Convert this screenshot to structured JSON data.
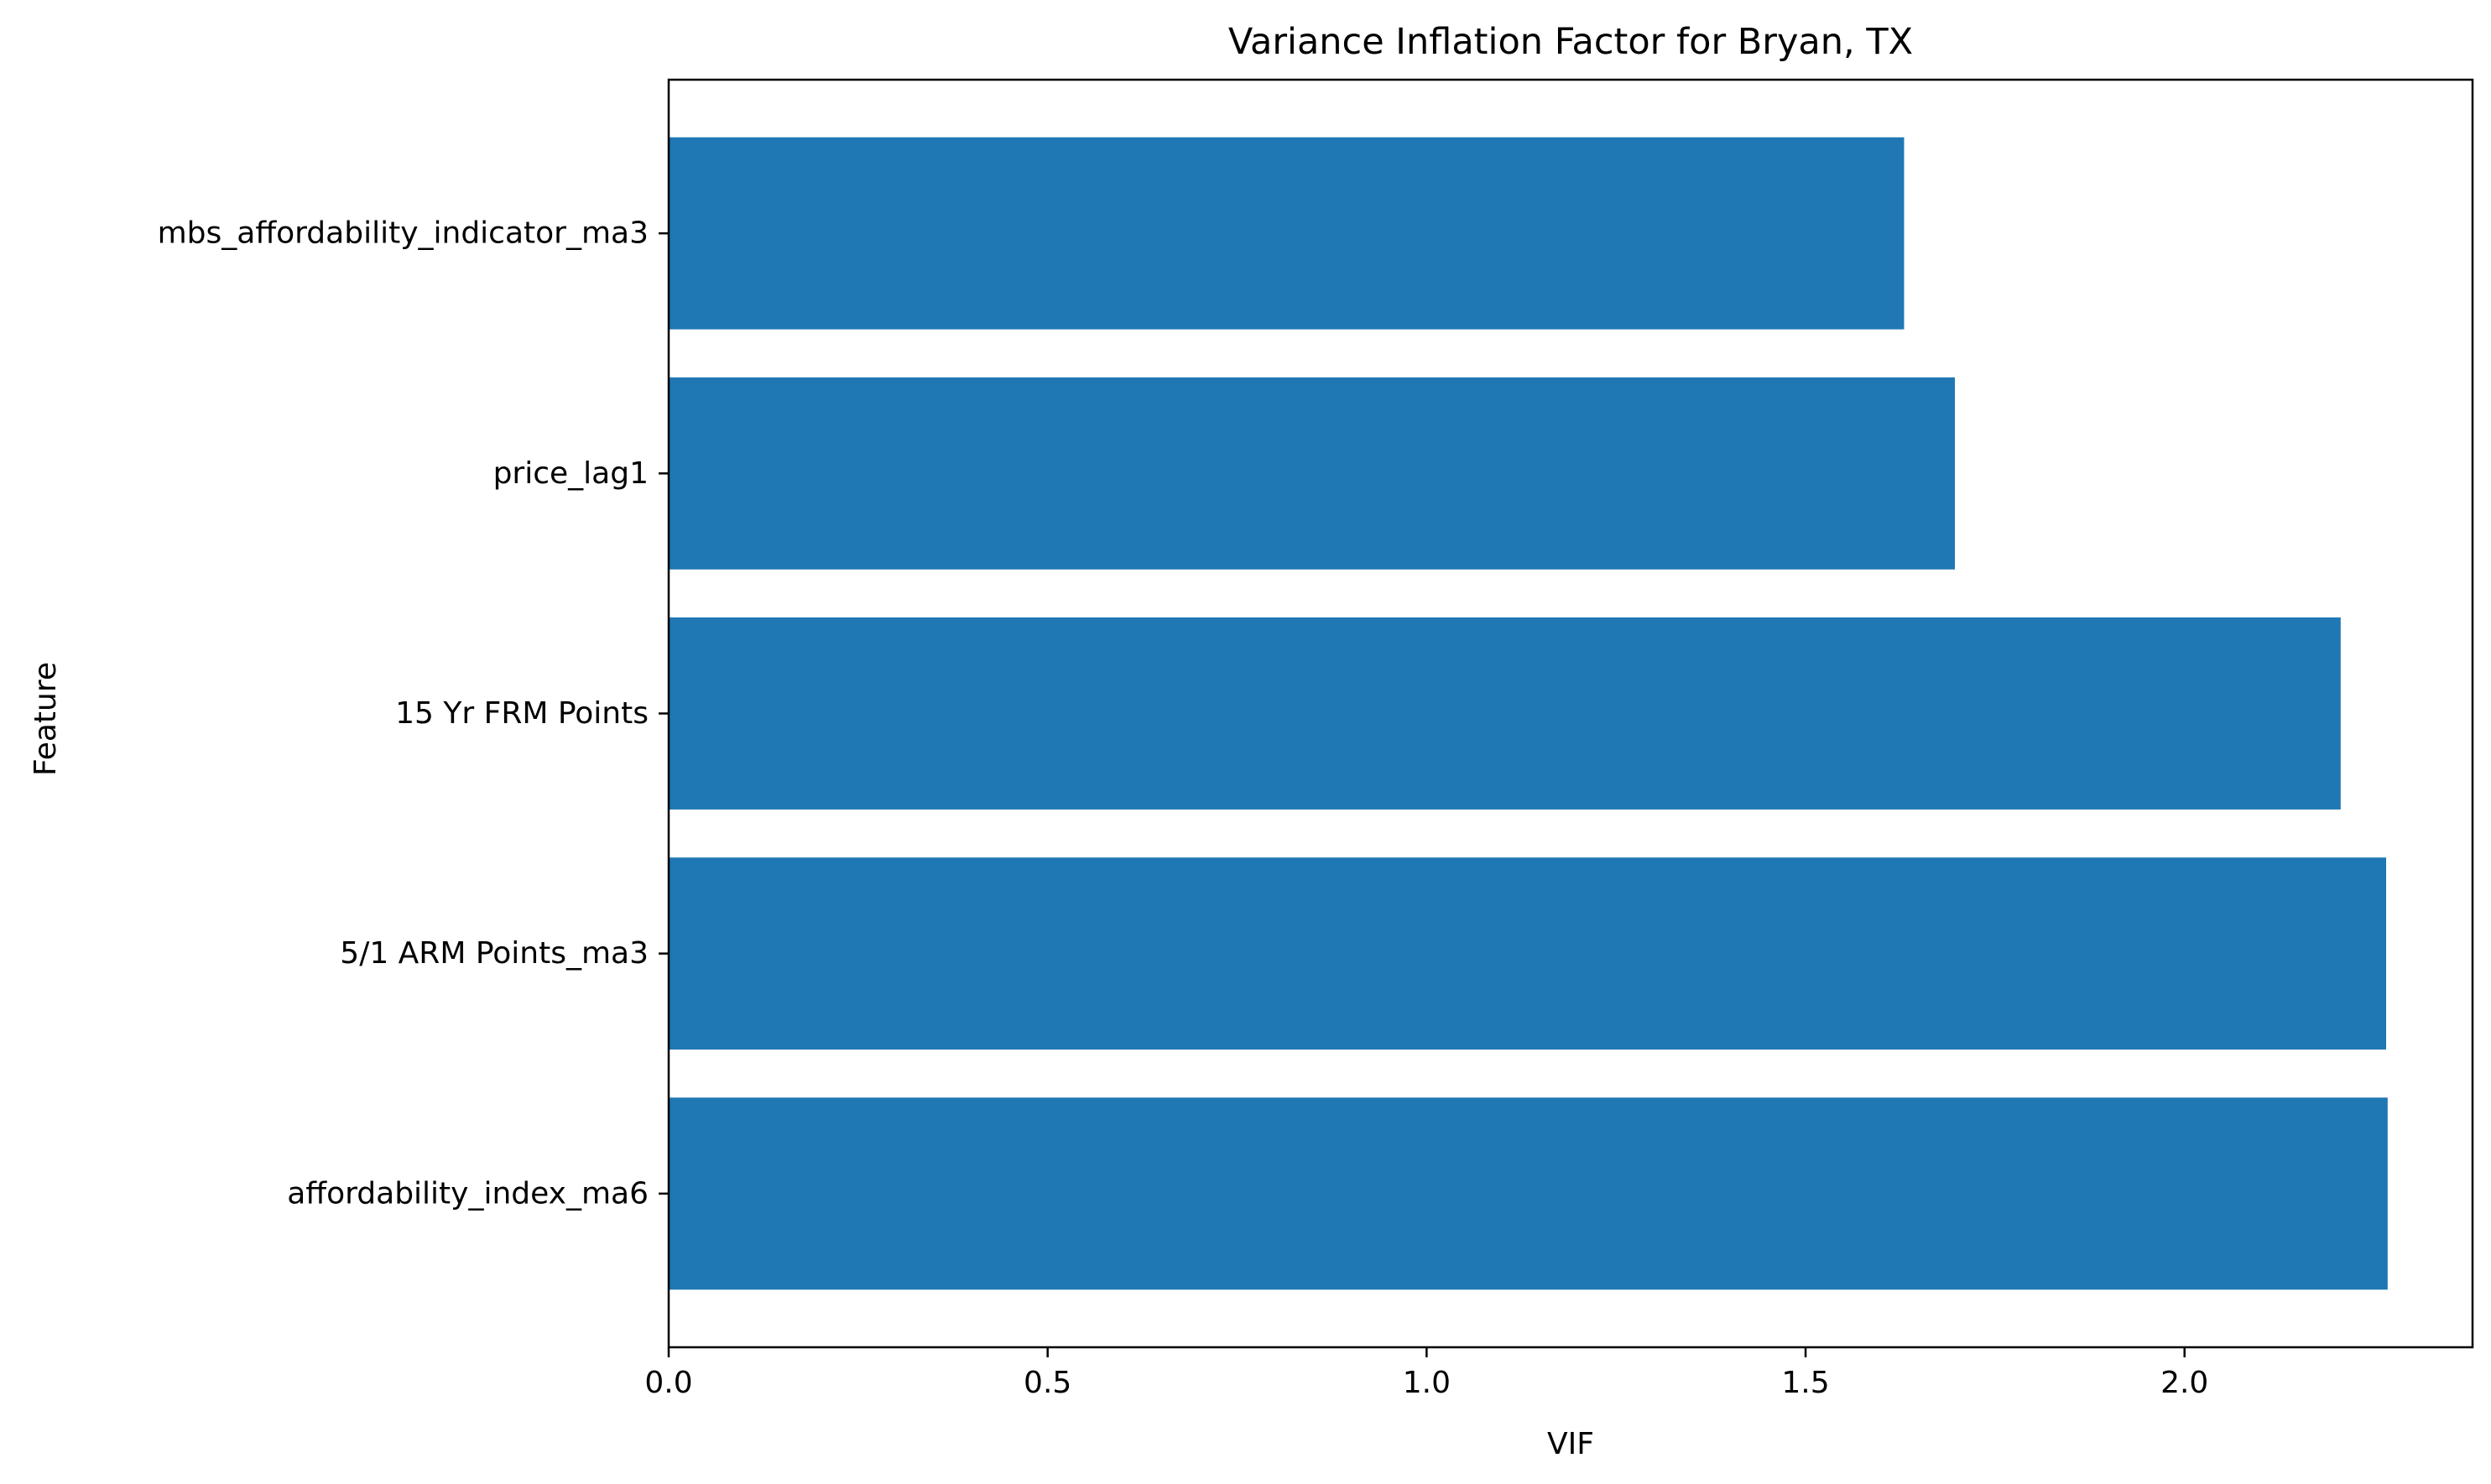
{
  "chart_data": {
    "type": "bar",
    "orientation": "horizontal",
    "title": "Variance Inflation Factor for Bryan, TX",
    "xlabel": "VIF",
    "ylabel": "Feature",
    "categories": [
      "affordability_index_ma6",
      "5/1 ARM Points_ma3",
      "15 Yr FRM Points",
      "price_lag1",
      "mbs_affordability_indicator_ma3"
    ],
    "values": [
      2.268,
      2.266,
      2.206,
      1.697,
      1.63
    ],
    "xlim": [
      0,
      2.38
    ],
    "xticks": [
      0.0,
      0.5,
      1.0,
      1.5,
      2.0
    ],
    "xtick_labels": [
      "0.0",
      "0.5",
      "1.0",
      "1.5",
      "2.0"
    ],
    "bar_color": "#1f77b4",
    "grid": false,
    "legend": "none"
  }
}
